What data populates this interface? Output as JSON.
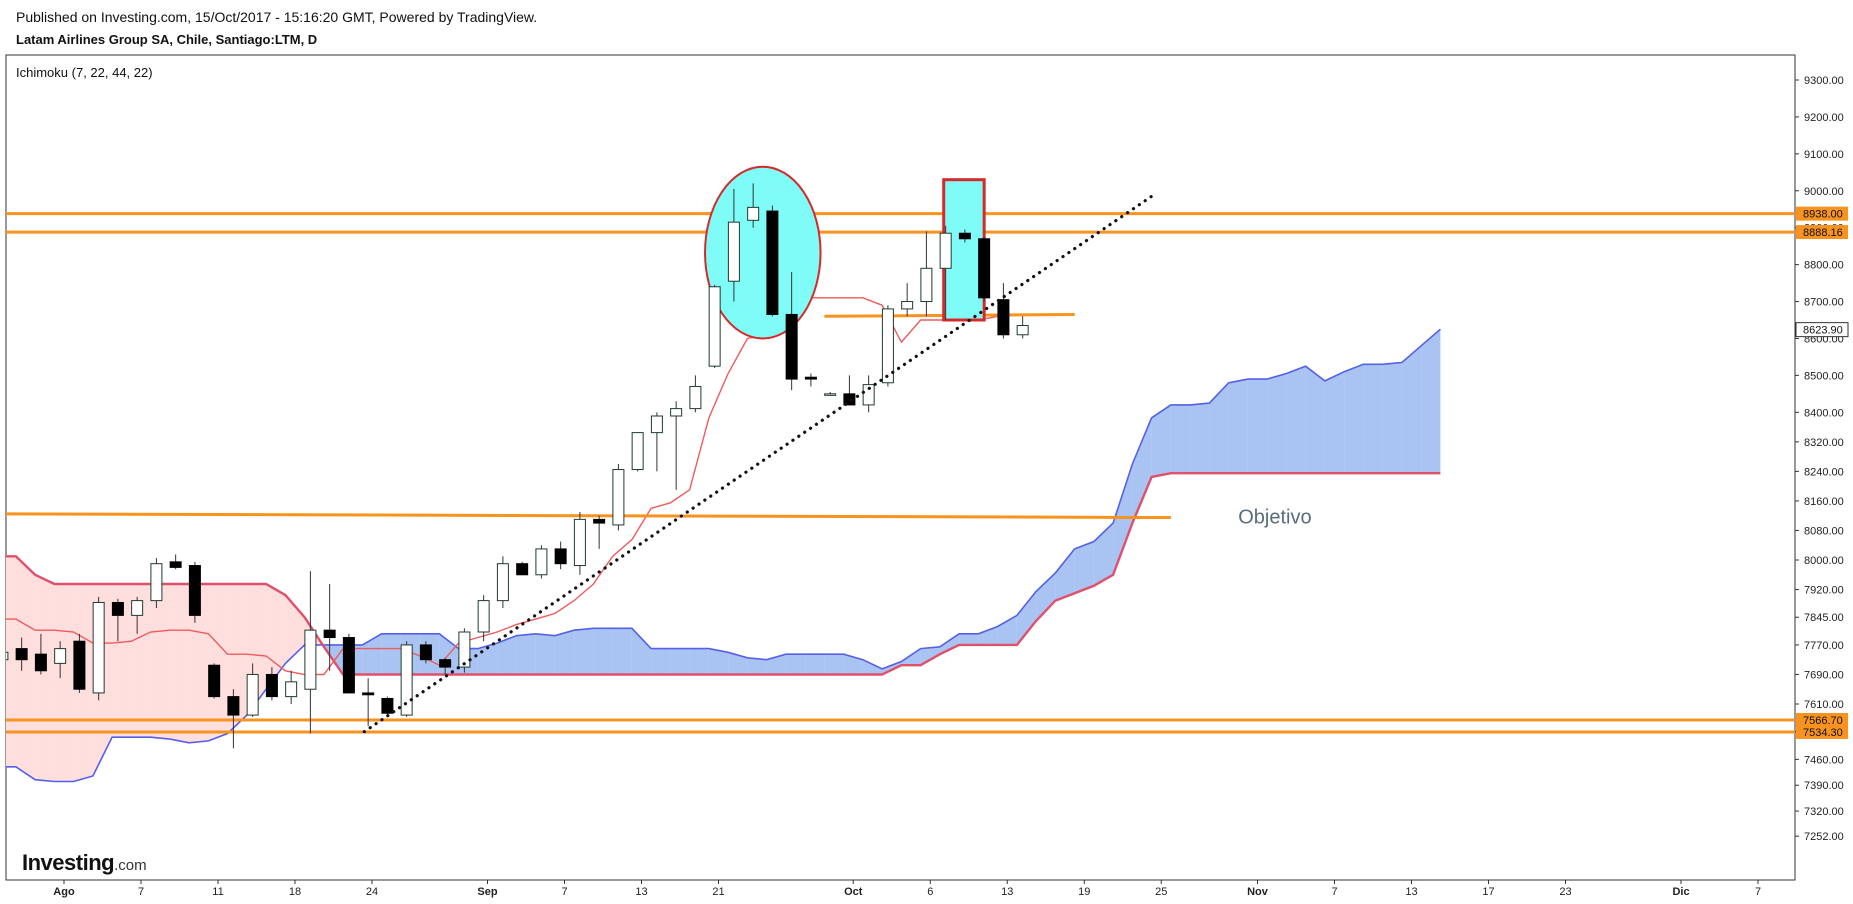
{
  "header": {
    "published": "Published on Investing.com, 15/Oct/2017 - 15:16:20 GMT, Powered by TradingView.",
    "symbol": "Latam Airlines Group SA, Chile, Santiago:LTM, D"
  },
  "indicator_label": "Ichimoku (7, 22, 44, 22)",
  "logo": {
    "brand": "Investing",
    "suffix": ".com"
  },
  "colors": {
    "up_fill": "#ffffff",
    "down_fill": "#000000",
    "candle_border": "#1f3b2e",
    "level": "#f7931e",
    "tenkan": "#f05a5a",
    "kumo_bull_fill": "#a9c4f2",
    "kumo_bear_fill": "#ffdede",
    "senkou_a": "#5560e8",
    "senkou_b": "#e0506a",
    "highlight_fill": "#7ffcf8",
    "highlight_border": "#d42a2a",
    "trendline": "#111111",
    "annotation_text": "#5b6b7f"
  },
  "chart_data": {
    "type": "candlestick",
    "indicator": "Ichimoku (7, 22, 44, 22)",
    "ylim": [
      7220,
      9360
    ],
    "yticks": [
      "9300.00",
      "9200.00",
      "9100.00",
      "9000.00",
      "8900.00",
      "8800.00",
      "8700.00",
      "8600.00",
      "8500.00",
      "8400.00",
      "8320.00",
      "8240.00",
      "8160.00",
      "8080.00",
      "8000.00",
      "7920.00",
      "7845.00",
      "7770.00",
      "7690.00",
      "7610.00",
      "7535.00",
      "7460.00",
      "7390.00",
      "7320.00",
      "7252.00"
    ],
    "xticks": [
      {
        "label": "Ago",
        "bold": true,
        "x": 0
      },
      {
        "label": "7",
        "bold": false,
        "x": 4
      },
      {
        "label": "11",
        "bold": false,
        "x": 8
      },
      {
        "label": "18",
        "bold": false,
        "x": 12
      },
      {
        "label": "24",
        "bold": false,
        "x": 16
      },
      {
        "label": "Sep",
        "bold": true,
        "x": 22
      },
      {
        "label": "7",
        "bold": false,
        "x": 26
      },
      {
        "label": "13",
        "bold": false,
        "x": 30
      },
      {
        "label": "21",
        "bold": false,
        "x": 34
      },
      {
        "label": "Oct",
        "bold": true,
        "x": 41
      },
      {
        "label": "6",
        "bold": false,
        "x": 45
      },
      {
        "label": "13",
        "bold": false,
        "x": 49
      },
      {
        "label": "19",
        "bold": false,
        "x": 53
      },
      {
        "label": "25",
        "bold": false,
        "x": 57
      },
      {
        "label": "Nov",
        "bold": true,
        "x": 62
      },
      {
        "label": "7",
        "bold": false,
        "x": 66
      },
      {
        "label": "13",
        "bold": false,
        "x": 70
      },
      {
        "label": "17",
        "bold": false,
        "x": 74
      },
      {
        "label": "23",
        "bold": false,
        "x": 78
      },
      {
        "label": "Dic",
        "bold": true,
        "x": 84
      },
      {
        "label": "7",
        "bold": false,
        "x": 88
      }
    ],
    "candles": [
      {
        "x": -3.2,
        "o": 7730,
        "h": 7780,
        "l": 7700,
        "c": 7750
      },
      {
        "x": -2.2,
        "o": 7760,
        "h": 7790,
        "l": 7700,
        "c": 7730
      },
      {
        "x": -1.2,
        "o": 7745,
        "h": 7800,
        "l": 7690,
        "c": 7700
      },
      {
        "x": -0.2,
        "o": 7720,
        "h": 7780,
        "l": 7680,
        "c": 7760
      },
      {
        "x": 0.8,
        "o": 7780,
        "h": 7800,
        "l": 7640,
        "c": 7650
      },
      {
        "x": 1.8,
        "o": 7640,
        "h": 7900,
        "l": 7620,
        "c": 7885
      },
      {
        "x": 2.8,
        "o": 7885,
        "h": 7895,
        "l": 7780,
        "c": 7850
      },
      {
        "x": 3.8,
        "o": 7850,
        "h": 7900,
        "l": 7800,
        "c": 7890
      },
      {
        "x": 4.8,
        "o": 7890,
        "h": 8005,
        "l": 7870,
        "c": 7990
      },
      {
        "x": 5.8,
        "o": 7995,
        "h": 8015,
        "l": 7975,
        "c": 7980
      },
      {
        "x": 6.8,
        "o": 7985,
        "h": 7995,
        "l": 7830,
        "c": 7850
      },
      {
        "x": 7.8,
        "o": 7715,
        "h": 7720,
        "l": 7625,
        "c": 7630
      },
      {
        "x": 8.8,
        "o": 7630,
        "h": 7650,
        "l": 7490,
        "c": 7580
      },
      {
        "x": 9.8,
        "o": 7580,
        "h": 7720,
        "l": 7575,
        "c": 7690
      },
      {
        "x": 10.8,
        "o": 7690,
        "h": 7710,
        "l": 7620,
        "c": 7630
      },
      {
        "x": 11.8,
        "o": 7630,
        "h": 7700,
        "l": 7610,
        "c": 7670
      },
      {
        "x": 12.8,
        "o": 7650,
        "h": 7970,
        "l": 7530,
        "c": 7810
      },
      {
        "x": 13.8,
        "o": 7810,
        "h": 7935,
        "l": 7700,
        "c": 7790
      },
      {
        "x": 14.8,
        "o": 7790,
        "h": 7800,
        "l": 7640,
        "c": 7640
      },
      {
        "x": 15.8,
        "o": 7640,
        "h": 7680,
        "l": 7550,
        "c": 7635
      },
      {
        "x": 16.8,
        "o": 7625,
        "h": 7630,
        "l": 7580,
        "c": 7585
      },
      {
        "x": 17.8,
        "o": 7580,
        "h": 7780,
        "l": 7575,
        "c": 7770
      },
      {
        "x": 18.8,
        "o": 7770,
        "h": 7780,
        "l": 7720,
        "c": 7730
      },
      {
        "x": 19.8,
        "o": 7730,
        "h": 7735,
        "l": 7690,
        "c": 7710
      },
      {
        "x": 20.8,
        "o": 7710,
        "h": 7815,
        "l": 7695,
        "c": 7805
      },
      {
        "x": 21.8,
        "o": 7805,
        "h": 7905,
        "l": 7780,
        "c": 7890
      },
      {
        "x": 22.8,
        "o": 7890,
        "h": 8010,
        "l": 7870,
        "c": 7990
      },
      {
        "x": 23.8,
        "o": 7990,
        "h": 7995,
        "l": 7960,
        "c": 7960
      },
      {
        "x": 24.8,
        "o": 7960,
        "h": 8040,
        "l": 7950,
        "c": 8030
      },
      {
        "x": 25.8,
        "o": 8030,
        "h": 8050,
        "l": 7975,
        "c": 7990
      },
      {
        "x": 26.8,
        "o": 7985,
        "h": 8130,
        "l": 7960,
        "c": 8110
      },
      {
        "x": 27.8,
        "o": 8110,
        "h": 8120,
        "l": 8030,
        "c": 8100
      },
      {
        "x": 28.8,
        "o": 8095,
        "h": 8260,
        "l": 8080,
        "c": 8245
      },
      {
        "x": 29.8,
        "o": 8245,
        "h": 8345,
        "l": 8240,
        "c": 8345
      },
      {
        "x": 30.8,
        "o": 8345,
        "h": 8400,
        "l": 8240,
        "c": 8390
      },
      {
        "x": 31.8,
        "o": 8390,
        "h": 8430,
        "l": 8190,
        "c": 8410
      },
      {
        "x": 32.8,
        "o": 8410,
        "h": 8500,
        "l": 8400,
        "c": 8470
      },
      {
        "x": 33.8,
        "o": 8525,
        "h": 8745,
        "l": 8520,
        "c": 8740
      },
      {
        "x": 34.8,
        "o": 8755,
        "h": 9005,
        "l": 8700,
        "c": 8915
      },
      {
        "x": 35.8,
        "o": 8920,
        "h": 9020,
        "l": 8900,
        "c": 8955
      },
      {
        "x": 36.8,
        "o": 8945,
        "h": 8960,
        "l": 8660,
        "c": 8665
      },
      {
        "x": 37.8,
        "o": 8665,
        "h": 8780,
        "l": 8460,
        "c": 8490
      },
      {
        "x": 38.8,
        "o": 8495,
        "h": 8505,
        "l": 8470,
        "c": 8490
      },
      {
        "x": 39.8,
        "o": 8450,
        "h": 8455,
        "l": 8445,
        "c": 8450
      },
      {
        "x": 40.8,
        "o": 8450,
        "h": 8500,
        "l": 8420,
        "c": 8420
      },
      {
        "x": 41.8,
        "o": 8420,
        "h": 8500,
        "l": 8400,
        "c": 8475
      },
      {
        "x": 42.8,
        "o": 8480,
        "h": 8690,
        "l": 8470,
        "c": 8680
      },
      {
        "x": 43.8,
        "o": 8680,
        "h": 8750,
        "l": 8660,
        "c": 8700
      },
      {
        "x": 44.8,
        "o": 8700,
        "h": 8890,
        "l": 8660,
        "c": 8790
      },
      {
        "x": 45.8,
        "o": 8790,
        "h": 8905,
        "l": 8650,
        "c": 8885
      },
      {
        "x": 46.8,
        "o": 8885,
        "h": 8895,
        "l": 8860,
        "c": 8870
      },
      {
        "x": 47.8,
        "o": 8870,
        "h": 8875,
        "l": 8700,
        "c": 8710
      },
      {
        "x": 48.8,
        "o": 8705,
        "h": 8750,
        "l": 8600,
        "c": 8610
      },
      {
        "x": 49.8,
        "o": 8610,
        "h": 8660,
        "l": 8600,
        "c": 8635
      }
    ],
    "tenkan_sen": [
      [
        -3.5,
        7840
      ],
      [
        -2.5,
        7840
      ],
      [
        -1.5,
        7810
      ],
      [
        -0.5,
        7810
      ],
      [
        0.5,
        7805
      ],
      [
        1.5,
        7775
      ],
      [
        2.5,
        7775
      ],
      [
        3.5,
        7780
      ],
      [
        4.5,
        7805
      ],
      [
        5.5,
        7810
      ],
      [
        6.5,
        7810
      ],
      [
        7.5,
        7800
      ],
      [
        8.5,
        7745
      ],
      [
        9.5,
        7745
      ],
      [
        10.5,
        7740
      ],
      [
        11.5,
        7700
      ],
      [
        12.5,
        7690
      ],
      [
        13.5,
        7690
      ],
      [
        14.5,
        7760
      ],
      [
        15.5,
        7760
      ],
      [
        16.5,
        7760
      ],
      [
        17.5,
        7760
      ],
      [
        18.5,
        7740
      ],
      [
        19.5,
        7715
      ],
      [
        20.5,
        7775
      ],
      [
        21.5,
        7790
      ],
      [
        22.5,
        7805
      ],
      [
        23.5,
        7825
      ],
      [
        24.5,
        7840
      ],
      [
        25.5,
        7855
      ],
      [
        26.5,
        7890
      ],
      [
        27.5,
        7935
      ],
      [
        28.5,
        8010
      ],
      [
        29.5,
        8055
      ],
      [
        30.5,
        8140
      ],
      [
        31.5,
        8155
      ],
      [
        32.5,
        8190
      ],
      [
        33.5,
        8385
      ],
      [
        34.5,
        8505
      ],
      [
        35.5,
        8600
      ],
      [
        36.5,
        8610
      ],
      [
        37.5,
        8690
      ],
      [
        38.5,
        8710
      ],
      [
        39.5,
        8710
      ],
      [
        40.5,
        8710
      ],
      [
        41.5,
        8710
      ],
      [
        42.5,
        8690
      ],
      [
        43.5,
        8590
      ],
      [
        44.5,
        8650
      ],
      [
        45.5,
        8650
      ],
      [
        46.5,
        8650
      ],
      [
        47.5,
        8650
      ],
      [
        48.5,
        8660
      ]
    ],
    "senkou_a": [
      [
        -3.5,
        7440
      ],
      [
        -2.5,
        7440
      ],
      [
        -1.5,
        7405
      ],
      [
        -0.5,
        7400
      ],
      [
        0.5,
        7400
      ],
      [
        1.5,
        7415
      ],
      [
        2.5,
        7520
      ],
      [
        3.5,
        7520
      ],
      [
        4.5,
        7520
      ],
      [
        5.5,
        7515
      ],
      [
        6.5,
        7505
      ],
      [
        7.5,
        7510
      ],
      [
        8.5,
        7530
      ],
      [
        9.5,
        7580
      ],
      [
        10.5,
        7650
      ],
      [
        11.5,
        7720
      ],
      [
        12.5,
        7770
      ],
      [
        13.5,
        7770
      ],
      [
        14.5,
        7770
      ],
      [
        15.5,
        7770
      ],
      [
        16.5,
        7800
      ],
      [
        17.5,
        7800
      ],
      [
        18.5,
        7800
      ],
      [
        19.5,
        7800
      ],
      [
        20.5,
        7760
      ],
      [
        21.5,
        7760
      ],
      [
        22.5,
        7775
      ],
      [
        23.5,
        7795
      ],
      [
        24.5,
        7800
      ],
      [
        25.5,
        7795
      ],
      [
        26.5,
        7810
      ],
      [
        27.5,
        7815
      ],
      [
        28.5,
        7815
      ],
      [
        29.5,
        7815
      ],
      [
        30.5,
        7760
      ],
      [
        31.5,
        7760
      ],
      [
        32.5,
        7760
      ],
      [
        33.5,
        7760
      ],
      [
        34.5,
        7750
      ],
      [
        35.5,
        7735
      ],
      [
        36.5,
        7730
      ],
      [
        37.5,
        7745
      ],
      [
        38.5,
        7745
      ],
      [
        39.5,
        7745
      ],
      [
        40.5,
        7745
      ],
      [
        41.5,
        7730
      ],
      [
        42.5,
        7705
      ],
      [
        43.5,
        7725
      ],
      [
        44.5,
        7760
      ],
      [
        45.5,
        7765
      ],
      [
        46.5,
        7800
      ],
      [
        47.5,
        7800
      ],
      [
        48.5,
        7820
      ],
      [
        49.5,
        7850
      ],
      [
        50.5,
        7915
      ],
      [
        51.5,
        7965
      ],
      [
        52.5,
        8030
      ],
      [
        53.5,
        8050
      ],
      [
        54.5,
        8100
      ],
      [
        55.5,
        8260
      ],
      [
        56.5,
        8385
      ],
      [
        57.5,
        8420
      ],
      [
        58.5,
        8420
      ],
      [
        59.5,
        8425
      ],
      [
        60.5,
        8480
      ],
      [
        61.5,
        8490
      ],
      [
        62.5,
        8490
      ],
      [
        63.5,
        8505
      ],
      [
        64.5,
        8525
      ],
      [
        65.5,
        8485
      ],
      [
        66.5,
        8510
      ],
      [
        67.5,
        8530
      ],
      [
        68.5,
        8530
      ],
      [
        69.5,
        8535
      ],
      [
        70.5,
        8580
      ],
      [
        71.5,
        8625
      ]
    ],
    "senkou_b": [
      [
        -3.5,
        8010
      ],
      [
        -2.5,
        8010
      ],
      [
        -1.5,
        7960
      ],
      [
        -0.5,
        7935
      ],
      [
        0.5,
        7935
      ],
      [
        1.5,
        7935
      ],
      [
        2.5,
        7935
      ],
      [
        3.5,
        7935
      ],
      [
        4.5,
        7935
      ],
      [
        5.5,
        7935
      ],
      [
        6.5,
        7935
      ],
      [
        7.5,
        7935
      ],
      [
        8.5,
        7935
      ],
      [
        9.5,
        7935
      ],
      [
        10.5,
        7935
      ],
      [
        11.5,
        7905
      ],
      [
        12.5,
        7845
      ],
      [
        13.5,
        7765
      ],
      [
        14.5,
        7690
      ],
      [
        15.5,
        7690
      ],
      [
        16.5,
        7690
      ],
      [
        17.5,
        7690
      ],
      [
        18.5,
        7690
      ],
      [
        19.5,
        7690
      ],
      [
        20.5,
        7690
      ],
      [
        21.5,
        7690
      ],
      [
        22.5,
        7690
      ],
      [
        23.5,
        7690
      ],
      [
        24.5,
        7690
      ],
      [
        25.5,
        7690
      ],
      [
        26.5,
        7690
      ],
      [
        27.5,
        7690
      ],
      [
        28.5,
        7690
      ],
      [
        29.5,
        7690
      ],
      [
        30.5,
        7690
      ],
      [
        31.5,
        7690
      ],
      [
        32.5,
        7690
      ],
      [
        33.5,
        7690
      ],
      [
        34.5,
        7690
      ],
      [
        35.5,
        7690
      ],
      [
        36.5,
        7690
      ],
      [
        37.5,
        7690
      ],
      [
        38.5,
        7690
      ],
      [
        39.5,
        7690
      ],
      [
        40.5,
        7690
      ],
      [
        41.5,
        7690
      ],
      [
        42.5,
        7690
      ],
      [
        43.5,
        7715
      ],
      [
        44.5,
        7715
      ],
      [
        45.5,
        7745
      ],
      [
        46.5,
        7770
      ],
      [
        47.5,
        7770
      ],
      [
        48.5,
        7770
      ],
      [
        49.5,
        7770
      ],
      [
        50.5,
        7835
      ],
      [
        51.5,
        7890
      ],
      [
        52.5,
        7910
      ],
      [
        53.5,
        7930
      ],
      [
        54.5,
        7960
      ],
      [
        55.5,
        8100
      ],
      [
        56.5,
        8225
      ],
      [
        57.5,
        8235
      ],
      [
        58.5,
        8235
      ],
      [
        59.5,
        8235
      ],
      [
        60.5,
        8235
      ],
      [
        61.5,
        8235
      ],
      [
        62.5,
        8235
      ],
      [
        63.5,
        8235
      ],
      [
        64.5,
        8235
      ],
      [
        65.5,
        8235
      ],
      [
        66.5,
        8235
      ],
      [
        67.5,
        8235
      ],
      [
        68.5,
        8235
      ],
      [
        69.5,
        8235
      ],
      [
        70.5,
        8235
      ],
      [
        71.5,
        8235
      ]
    ],
    "horizontal_levels": [
      {
        "value": 8938,
        "label": "8938.00",
        "from_x": -3.5,
        "to_x": 92.5
      },
      {
        "value": 8888.16,
        "label": "8888.16",
        "from_x": -3.5,
        "to_x": 92.5
      },
      {
        "value": 7566.7,
        "label": "7566.70",
        "from_x": -3.5,
        "to_x": 92.5
      },
      {
        "value": 7534.3,
        "label": "7534.30",
        "from_x": -3.5,
        "to_x": 92.5
      }
    ],
    "drawn_lines": [
      {
        "name": "support-line",
        "x1": -3.5,
        "y1": 8125,
        "x2": 57.5,
        "y2": 8115
      },
      {
        "name": "neckline",
        "x1": 39.5,
        "y1": 8660,
        "x2": 52.5,
        "y2": 8665
      }
    ],
    "trendline": {
      "x1": 15.6,
      "y1": 7535,
      "x2": 56.5,
      "y2": 8985
    },
    "last_price": {
      "value": 8623.9,
      "label": "8623.90"
    },
    "highlights": [
      {
        "shape": "ellipse",
        "x1": 33.3,
        "x2": 39.3,
        "y_top": 9065,
        "y_bottom": 8600
      },
      {
        "shape": "rect",
        "x1": 45.7,
        "x2": 47.8,
        "y_top": 9030,
        "y_bottom": 8650
      }
    ],
    "annotations": [
      {
        "text": "Objetivo",
        "x": 61,
        "y": 8115
      }
    ]
  }
}
